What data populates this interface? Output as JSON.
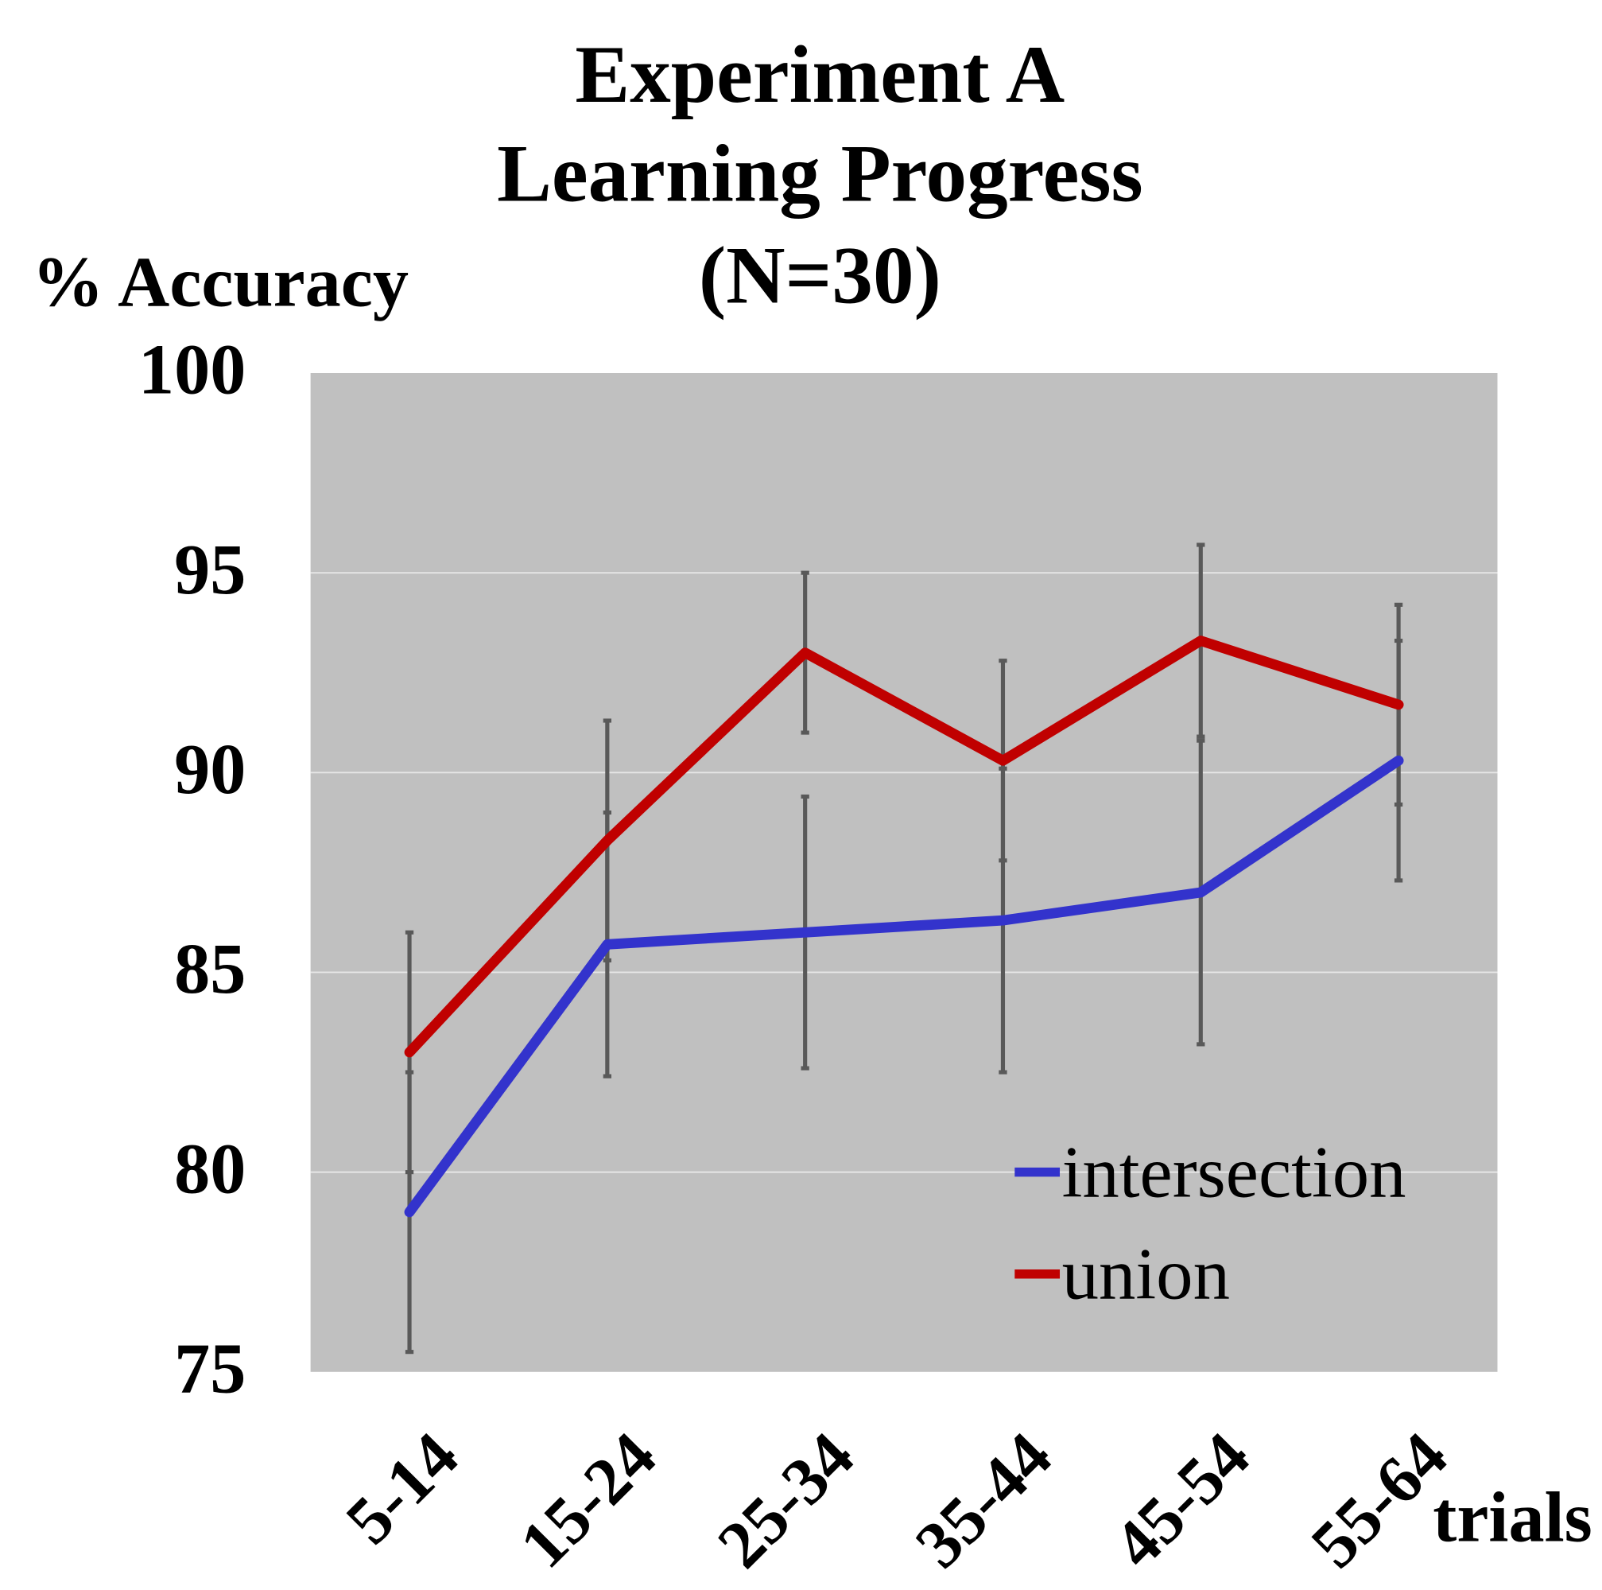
{
  "chart_data": {
    "type": "line",
    "title": [
      "Experiment A",
      "Learning Progress",
      "(N=30)"
    ],
    "y_label": "% Accuracy",
    "x_label": "trials",
    "categories": [
      "5-14",
      "15-24",
      "25-34",
      "35-44",
      "45-54",
      "55-64"
    ],
    "series": [
      {
        "name": "intersection",
        "color": "#3333cc",
        "values": [
          79.0,
          85.7,
          86.0,
          86.3,
          87.0,
          90.3
        ],
        "errors": [
          3.5,
          3.3,
          3.4,
          3.8,
          3.8,
          3.0
        ]
      },
      {
        "name": "union",
        "color": "#c00000",
        "values": [
          83.0,
          88.3,
          93.0,
          90.3,
          93.3,
          91.7
        ],
        "errors": [
          3.0,
          3.0,
          2.0,
          2.5,
          2.4,
          2.5
        ]
      }
    ],
    "error_color": "#595959",
    "ylim": [
      75,
      100
    ],
    "yticks": [
      75,
      80,
      85,
      90,
      95,
      100
    ],
    "grid": true,
    "background": "#c0c0c0",
    "legend": "lower right"
  }
}
